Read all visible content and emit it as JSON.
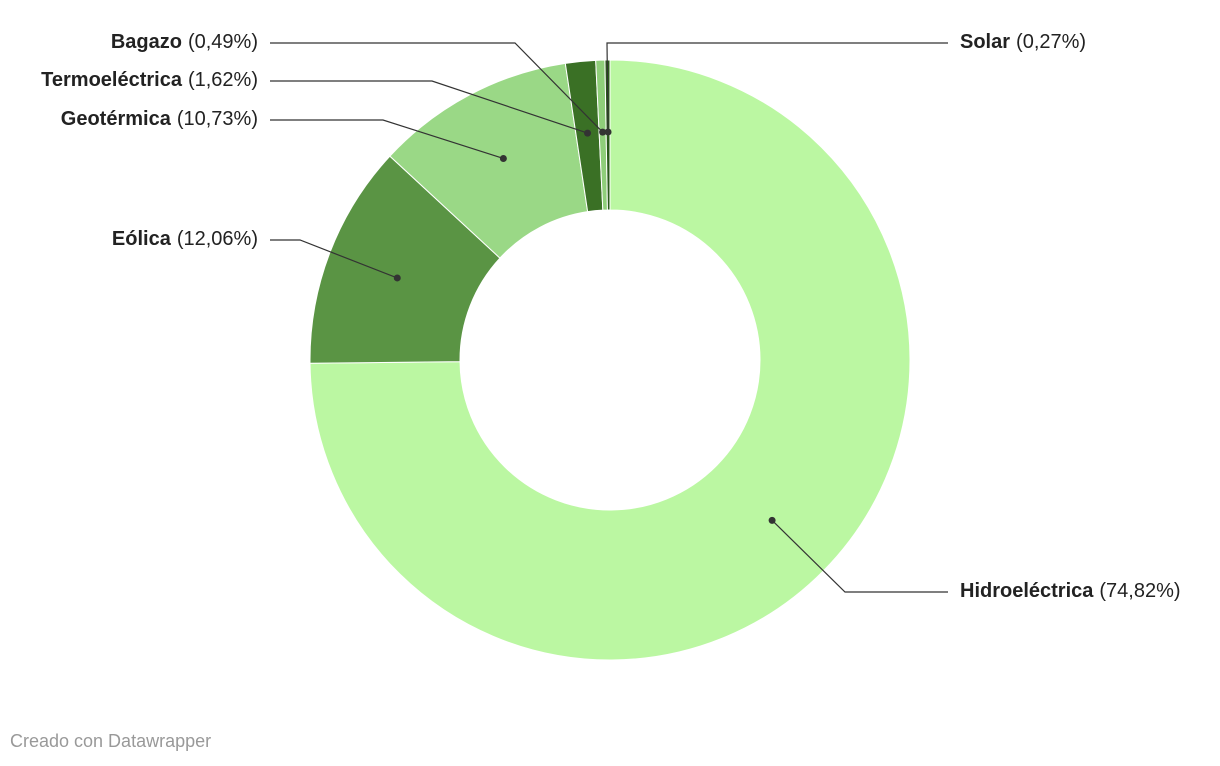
{
  "chart_data": {
    "type": "donut",
    "categories": [
      "Hidroeléctrica",
      "Eólica",
      "Geotérmica",
      "Termoeléctrica",
      "Bagazo",
      "Solar"
    ],
    "values": [
      74.82,
      12.06,
      10.73,
      1.62,
      0.49,
      0.27
    ],
    "value_labels": [
      "(74,82%)",
      "(12,06%)",
      "(10,73%)",
      "(1,62%)",
      "(0,49%)",
      "(0,27%)"
    ],
    "colors": [
      "#bbf7a2",
      "#5a9444",
      "#9ad886",
      "#3a7025",
      "#8fce7a",
      "#2a5a1a"
    ],
    "footer": "Creado con Datawrapper"
  }
}
